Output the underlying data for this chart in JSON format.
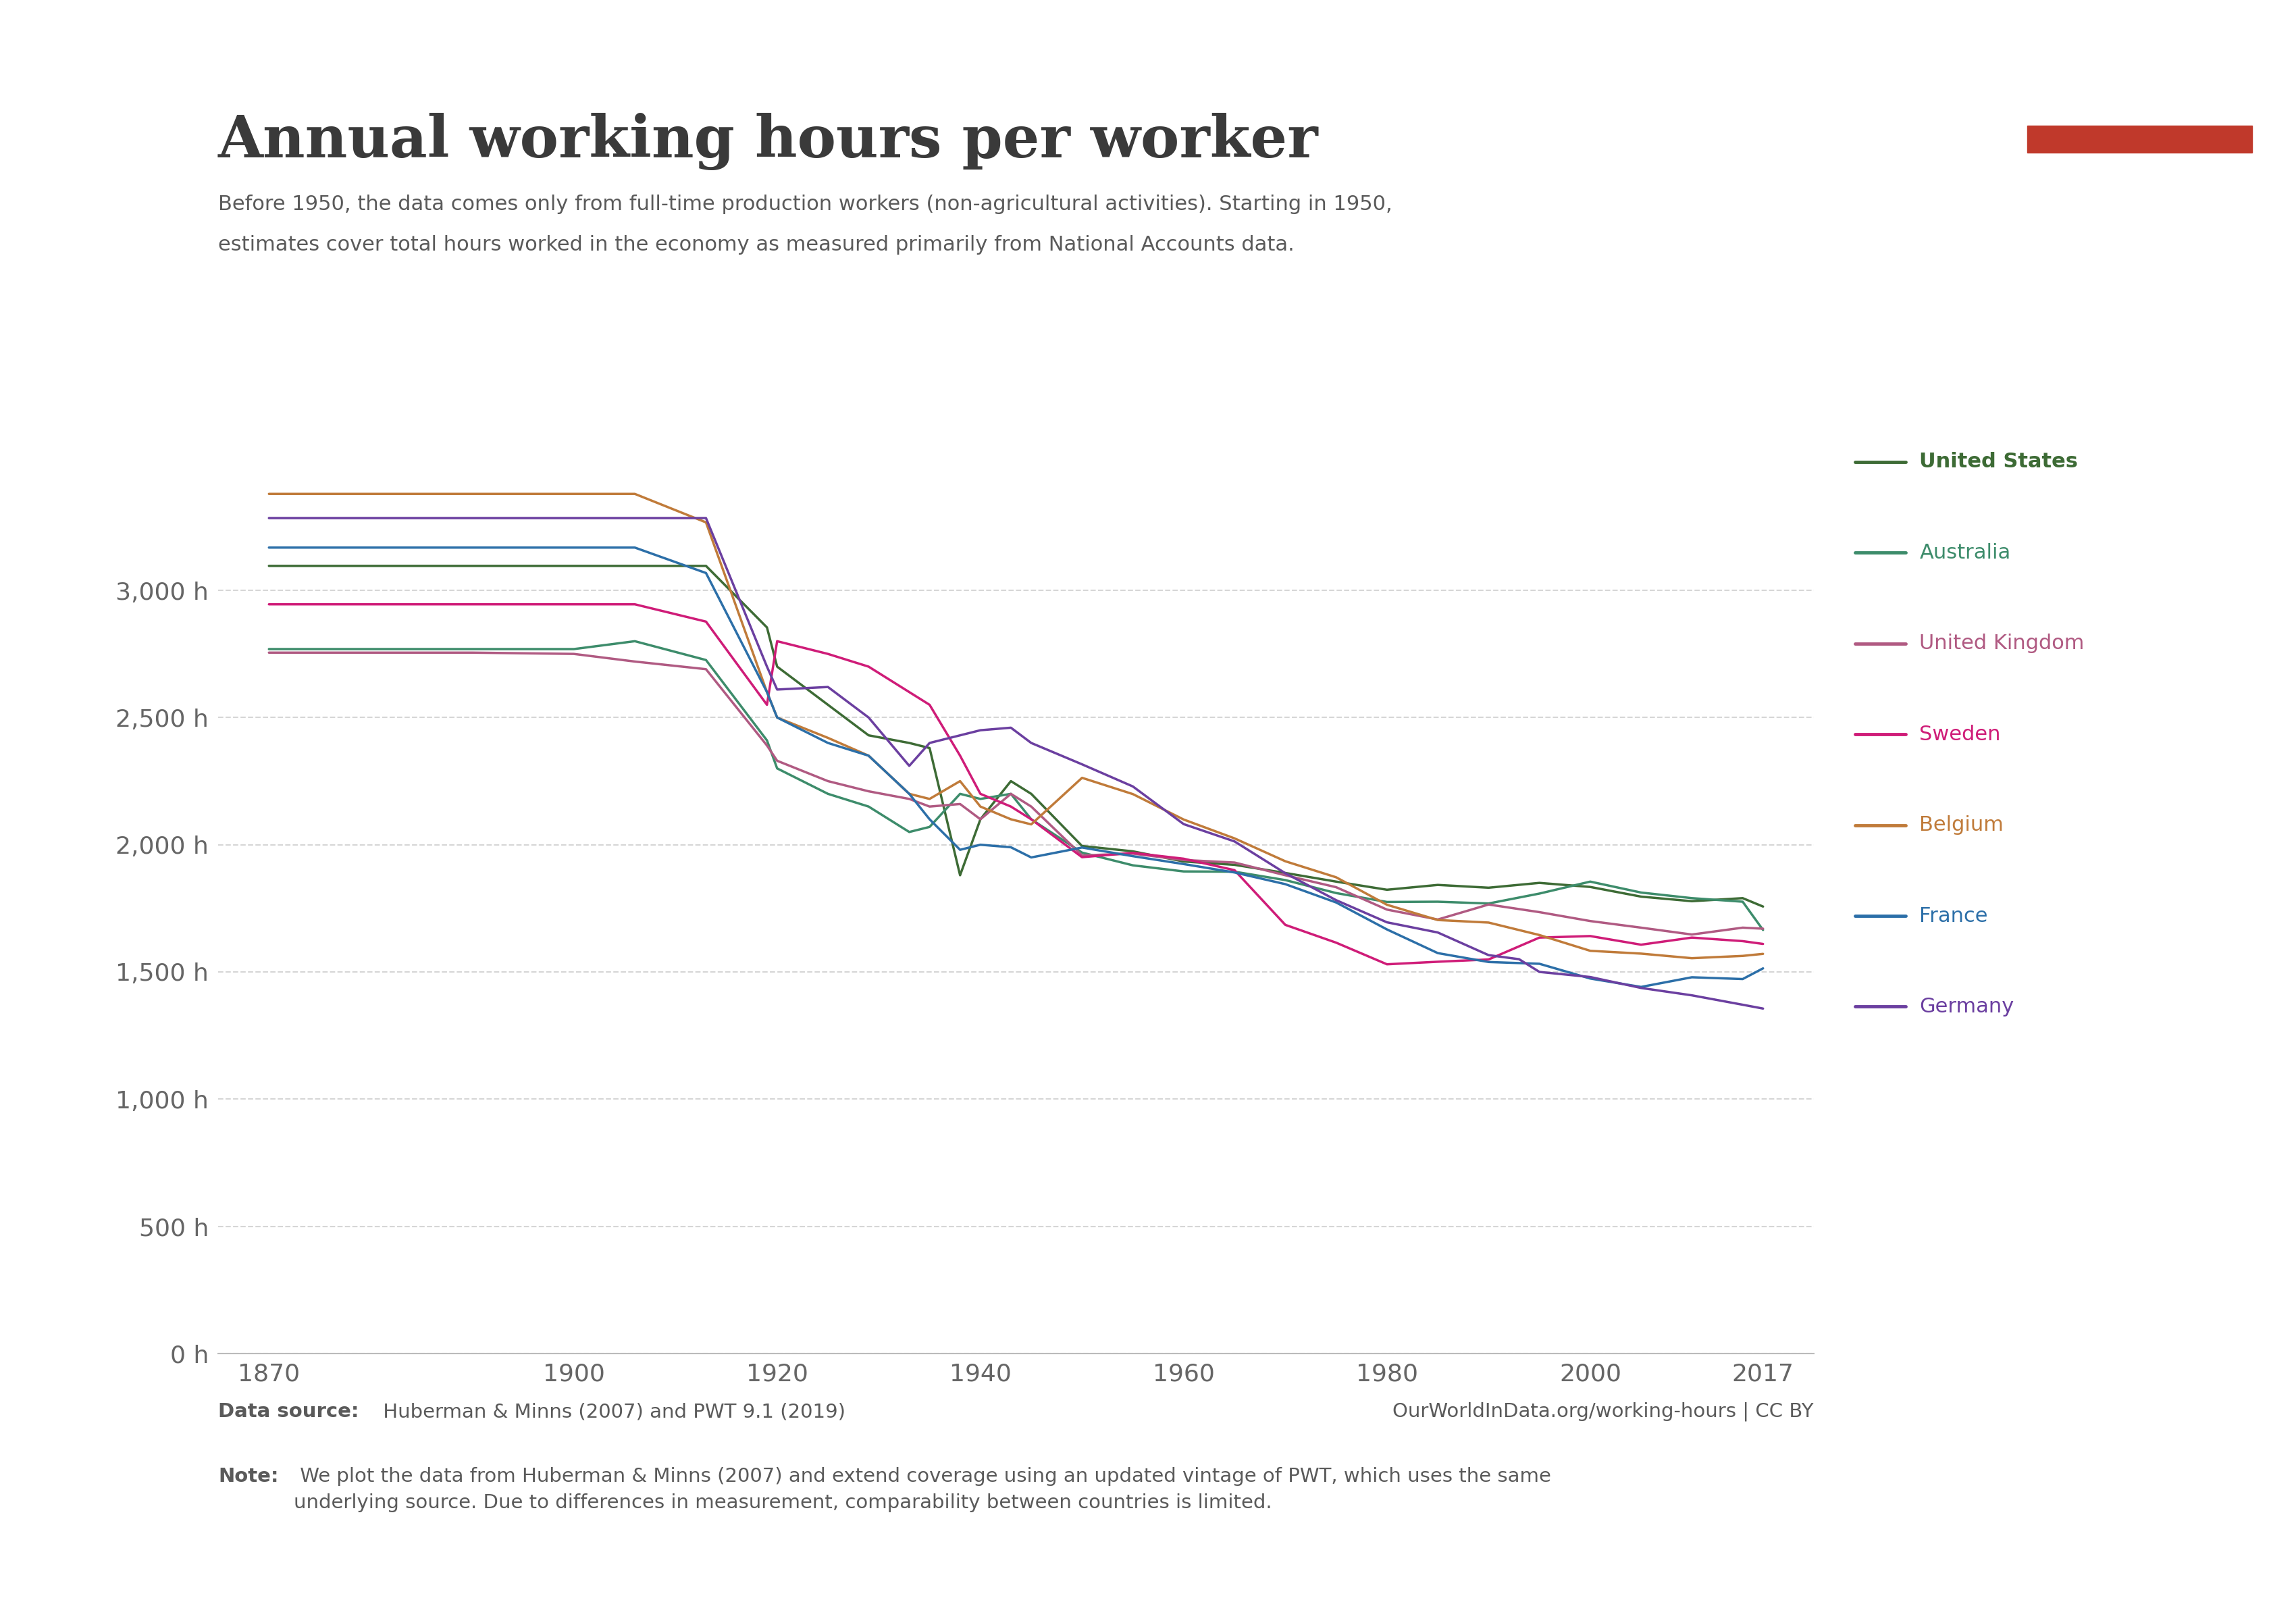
{
  "title": "Annual working hours per worker",
  "subtitle_line1": "Before 1950, the data comes only from full-time production workers (non-agricultural activities). Starting in 1950,",
  "subtitle_line2": "estimates cover total hours worked in the economy as measured primarily from National Accounts data.",
  "datasource_bold": "Data source:",
  "datasource_plain": " Huberman & Minns (2007) and PWT 9.1 (2019)",
  "datasource_right": "OurWorldInData.org/working-hours | CC BY",
  "note_bold": "Note:",
  "note_plain": " We plot the data from Huberman & Minns (2007) and extend coverage using an updated vintage of PWT, which uses the same\nunderlying source. Due to differences in measurement, comparability between countries is limited.",
  "background_color": "#ffffff",
  "plot_bg_color": "#ffffff",
  "grid_color": "#cccccc",
  "series": [
    {
      "name": "United States",
      "color": "#3d6b35",
      "linewidth": 2.5,
      "data": [
        [
          1870,
          3096
        ],
        [
          1880,
          3096
        ],
        [
          1890,
          3096
        ],
        [
          1900,
          3096
        ],
        [
          1906,
          3096
        ],
        [
          1913,
          3096
        ],
        [
          1919,
          2854
        ],
        [
          1920,
          2700
        ],
        [
          1925,
          2550
        ],
        [
          1929,
          2430
        ],
        [
          1933,
          2400
        ],
        [
          1935,
          2380
        ],
        [
          1938,
          1880
        ],
        [
          1940,
          2100
        ],
        [
          1943,
          2250
        ],
        [
          1945,
          2200
        ],
        [
          1950,
          1995
        ],
        [
          1955,
          1974
        ],
        [
          1960,
          1934
        ],
        [
          1965,
          1921
        ],
        [
          1970,
          1889
        ],
        [
          1975,
          1855
        ],
        [
          1980,
          1823
        ],
        [
          1985,
          1842
        ],
        [
          1990,
          1831
        ],
        [
          1995,
          1850
        ],
        [
          2000,
          1834
        ],
        [
          2005,
          1796
        ],
        [
          2010,
          1778
        ],
        [
          2015,
          1790
        ],
        [
          2017,
          1757
        ]
      ]
    },
    {
      "name": "Australia",
      "color": "#3d8c6b",
      "linewidth": 2.5,
      "data": [
        [
          1870,
          2769
        ],
        [
          1880,
          2769
        ],
        [
          1890,
          2769
        ],
        [
          1900,
          2769
        ],
        [
          1906,
          2800
        ],
        [
          1913,
          2726
        ],
        [
          1919,
          2410
        ],
        [
          1920,
          2300
        ],
        [
          1925,
          2200
        ],
        [
          1929,
          2150
        ],
        [
          1933,
          2050
        ],
        [
          1935,
          2070
        ],
        [
          1938,
          2200
        ],
        [
          1940,
          2180
        ],
        [
          1943,
          2200
        ],
        [
          1945,
          2100
        ],
        [
          1950,
          1969
        ],
        [
          1955,
          1919
        ],
        [
          1960,
          1895
        ],
        [
          1965,
          1894
        ],
        [
          1970,
          1861
        ],
        [
          1975,
          1810
        ],
        [
          1980,
          1775
        ],
        [
          1985,
          1776
        ],
        [
          1990,
          1769
        ],
        [
          1995,
          1808
        ],
        [
          2000,
          1855
        ],
        [
          2005,
          1812
        ],
        [
          2010,
          1790
        ],
        [
          2015,
          1776
        ],
        [
          2017,
          1665
        ]
      ]
    },
    {
      "name": "United Kingdom",
      "color": "#b05a82",
      "linewidth": 2.5,
      "data": [
        [
          1870,
          2755
        ],
        [
          1880,
          2755
        ],
        [
          1890,
          2755
        ],
        [
          1900,
          2750
        ],
        [
          1906,
          2720
        ],
        [
          1913,
          2690
        ],
        [
          1919,
          2390
        ],
        [
          1920,
          2330
        ],
        [
          1925,
          2250
        ],
        [
          1929,
          2210
        ],
        [
          1933,
          2180
        ],
        [
          1935,
          2150
        ],
        [
          1938,
          2160
        ],
        [
          1940,
          2100
        ],
        [
          1943,
          2200
        ],
        [
          1945,
          2150
        ],
        [
          1950,
          1958
        ],
        [
          1955,
          1965
        ],
        [
          1960,
          1940
        ],
        [
          1965,
          1930
        ],
        [
          1970,
          1880
        ],
        [
          1975,
          1833
        ],
        [
          1980,
          1745
        ],
        [
          1985,
          1706
        ],
        [
          1990,
          1765
        ],
        [
          1995,
          1735
        ],
        [
          2000,
          1700
        ],
        [
          2005,
          1674
        ],
        [
          2010,
          1647
        ],
        [
          2015,
          1674
        ],
        [
          2017,
          1670
        ]
      ]
    },
    {
      "name": "Sweden",
      "color": "#cf1c78",
      "linewidth": 2.5,
      "data": [
        [
          1870,
          2945
        ],
        [
          1880,
          2945
        ],
        [
          1890,
          2945
        ],
        [
          1900,
          2945
        ],
        [
          1906,
          2945
        ],
        [
          1913,
          2877
        ],
        [
          1919,
          2550
        ],
        [
          1920,
          2800
        ],
        [
          1925,
          2750
        ],
        [
          1929,
          2700
        ],
        [
          1933,
          2600
        ],
        [
          1935,
          2550
        ],
        [
          1938,
          2350
        ],
        [
          1940,
          2200
        ],
        [
          1943,
          2150
        ],
        [
          1945,
          2100
        ],
        [
          1950,
          1951
        ],
        [
          1955,
          1968
        ],
        [
          1960,
          1945
        ],
        [
          1965,
          1900
        ],
        [
          1970,
          1685
        ],
        [
          1975,
          1615
        ],
        [
          1980,
          1530
        ],
        [
          1985,
          1540
        ],
        [
          1990,
          1549
        ],
        [
          1995,
          1635
        ],
        [
          2000,
          1641
        ],
        [
          2005,
          1607
        ],
        [
          2010,
          1635
        ],
        [
          2015,
          1621
        ],
        [
          2017,
          1610
        ]
      ]
    },
    {
      "name": "Belgium",
      "color": "#c07b3a",
      "linewidth": 2.5,
      "data": [
        [
          1870,
          3379
        ],
        [
          1880,
          3379
        ],
        [
          1890,
          3379
        ],
        [
          1900,
          3379
        ],
        [
          1906,
          3379
        ],
        [
          1913,
          3267
        ],
        [
          1919,
          2600
        ],
        [
          1920,
          2500
        ],
        [
          1925,
          2420
        ],
        [
          1929,
          2350
        ],
        [
          1933,
          2200
        ],
        [
          1935,
          2180
        ],
        [
          1938,
          2250
        ],
        [
          1940,
          2150
        ],
        [
          1943,
          2100
        ],
        [
          1945,
          2080
        ],
        [
          1950,
          2263
        ],
        [
          1955,
          2199
        ],
        [
          1960,
          2099
        ],
        [
          1965,
          2025
        ],
        [
          1970,
          1935
        ],
        [
          1975,
          1872
        ],
        [
          1980,
          1764
        ],
        [
          1985,
          1704
        ],
        [
          1990,
          1694
        ],
        [
          1995,
          1645
        ],
        [
          2000,
          1583
        ],
        [
          2005,
          1572
        ],
        [
          2010,
          1554
        ],
        [
          2015,
          1563
        ],
        [
          2017,
          1571
        ]
      ]
    },
    {
      "name": "France",
      "color": "#2c6fa8",
      "linewidth": 2.5,
      "data": [
        [
          1870,
          3168
        ],
        [
          1880,
          3168
        ],
        [
          1890,
          3168
        ],
        [
          1900,
          3168
        ],
        [
          1906,
          3168
        ],
        [
          1913,
          3068
        ],
        [
          1919,
          2600
        ],
        [
          1920,
          2500
        ],
        [
          1925,
          2400
        ],
        [
          1929,
          2350
        ],
        [
          1933,
          2200
        ],
        [
          1935,
          2100
        ],
        [
          1938,
          1980
        ],
        [
          1940,
          2000
        ],
        [
          1943,
          1990
        ],
        [
          1945,
          1950
        ],
        [
          1950,
          1989
        ],
        [
          1955,
          1955
        ],
        [
          1960,
          1924
        ],
        [
          1965,
          1891
        ],
        [
          1970,
          1845
        ],
        [
          1975,
          1773
        ],
        [
          1980,
          1667
        ],
        [
          1985,
          1574
        ],
        [
          1990,
          1539
        ],
        [
          1995,
          1532
        ],
        [
          2000,
          1474
        ],
        [
          2005,
          1441
        ],
        [
          2010,
          1479
        ],
        [
          2015,
          1472
        ],
        [
          2017,
          1514
        ]
      ]
    },
    {
      "name": "Germany",
      "color": "#6b3fa0",
      "linewidth": 2.5,
      "data": [
        [
          1870,
          3284
        ],
        [
          1880,
          3284
        ],
        [
          1890,
          3284
        ],
        [
          1900,
          3284
        ],
        [
          1906,
          3284
        ],
        [
          1913,
          3284
        ],
        [
          1919,
          2700
        ],
        [
          1920,
          2610
        ],
        [
          1925,
          2620
        ],
        [
          1929,
          2500
        ],
        [
          1933,
          2310
        ],
        [
          1935,
          2400
        ],
        [
          1938,
          2430
        ],
        [
          1940,
          2450
        ],
        [
          1943,
          2460
        ],
        [
          1945,
          2400
        ],
        [
          1950,
          2316
        ],
        [
          1955,
          2229
        ],
        [
          1960,
          2081
        ],
        [
          1965,
          2013
        ],
        [
          1970,
          1888
        ],
        [
          1975,
          1782
        ],
        [
          1980,
          1695
        ],
        [
          1985,
          1655
        ],
        [
          1990,
          1566
        ],
        [
          1993,
          1550
        ],
        [
          1995,
          1500
        ],
        [
          2000,
          1480
        ],
        [
          2005,
          1437
        ],
        [
          2010,
          1408
        ],
        [
          2015,
          1371
        ],
        [
          2017,
          1356
        ]
      ]
    }
  ],
  "xlim": [
    1865,
    2022
  ],
  "ylim": [
    0,
    3600
  ],
  "yticks": [
    0,
    500,
    1000,
    1500,
    2000,
    2500,
    3000
  ],
  "ytick_labels": [
    "0 h",
    "500 h",
    "1,000 h",
    "1,500 h",
    "2,000 h",
    "2,500 h",
    "3,000 h"
  ],
  "xticks": [
    1870,
    1900,
    1920,
    1940,
    1960,
    1980,
    2000,
    2017
  ],
  "owid_navy": "#1a3557",
  "owid_red": "#c0392b",
  "title_color": "#3a3a3a",
  "subtitle_color": "#5a5a5a",
  "tick_color": "#666666",
  "footer_color": "#5a5a5a"
}
